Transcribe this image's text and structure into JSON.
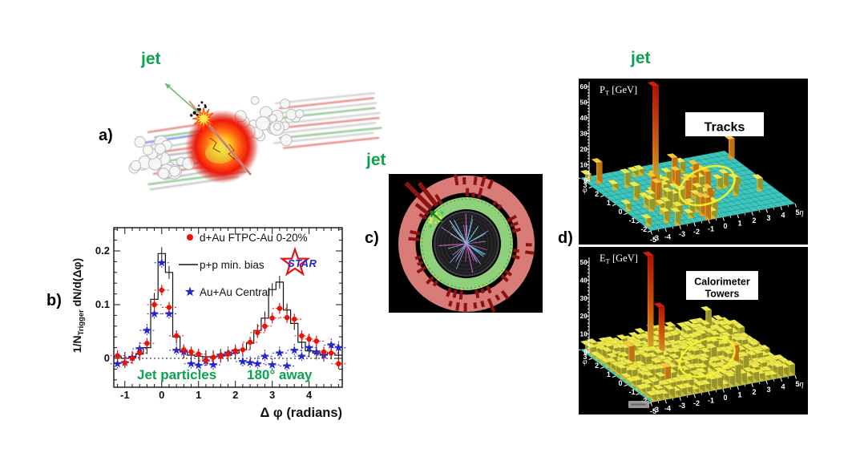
{
  "figure": {
    "jet_color": "#0ca24e",
    "panel_labels": {
      "a": "a)",
      "b": "b)",
      "c": "c)",
      "d": "d)"
    },
    "jet_labels": {
      "a": "jet",
      "c": "jet",
      "d": "jet"
    }
  },
  "chart_data": [
    {
      "panel": "b",
      "type": "scatter",
      "subtype": "dihadron-azimuthal-correlation",
      "xlabel": "Δ φ (radians)",
      "ylabel": {
        "text": "1/N_Trigger dN/d(Δφ)",
        "prefix": "1/N",
        "sub": "Trigger",
        "suffix": " dN/d(Δφ)"
      },
      "xlim": [
        -1.3,
        4.9
      ],
      "ylim": [
        -0.054,
        0.243
      ],
      "xticks": [
        -1,
        0,
        1,
        2,
        3,
        4
      ],
      "yticks": [
        0,
        0.1,
        0.2
      ],
      "zero_line": true,
      "annotation_left": "Jet particles",
      "annotation_right": "180° away",
      "logo": "STAR",
      "x": [
        -1.2,
        -1.0,
        -0.8,
        -0.6,
        -0.4,
        -0.2,
        0.0,
        0.2,
        0.4,
        0.6,
        0.8,
        1.0,
        1.2,
        1.4,
        1.6,
        1.8,
        2.0,
        2.2,
        2.4,
        2.6,
        2.8,
        3.0,
        3.2,
        3.4,
        3.6,
        3.8,
        4.0,
        4.2,
        4.4,
        4.6,
        4.8
      ],
      "series": [
        {
          "name": "d+Au FTPC-Au 0-20%",
          "marker": "circle",
          "color": "#ea1208",
          "yerr": 0.01,
          "values": [
            0.005,
            -0.008,
            0.0,
            0.01,
            0.028,
            0.1,
            0.127,
            0.095,
            0.042,
            0.016,
            0.012,
            0.008,
            -0.003,
            0.002,
            0.004,
            0.008,
            0.014,
            0.016,
            0.03,
            0.048,
            0.06,
            0.075,
            0.093,
            0.076,
            0.073,
            0.042,
            0.036,
            0.032,
            0.012,
            0.01,
            -0.01
          ]
        },
        {
          "name": "p+p min. bias",
          "marker": "histogram",
          "color": "#111111",
          "yerr": 0.012,
          "values": [
            0.003,
            0.0,
            0.002,
            0.008,
            0.02,
            0.11,
            0.195,
            0.16,
            0.04,
            0.012,
            0.006,
            0.004,
            0.003,
            0.003,
            0.004,
            0.006,
            0.01,
            0.016,
            0.028,
            0.052,
            0.075,
            0.128,
            0.142,
            0.09,
            0.065,
            0.03,
            0.014,
            0.01,
            0.006,
            0.01,
            0.006
          ]
        },
        {
          "name": "Au+Au Central",
          "marker": "star",
          "color": "#2424cc",
          "yerr": 0.012,
          "values": [
            -0.01,
            -0.008,
            0.002,
            0.018,
            0.052,
            0.083,
            0.178,
            0.083,
            0.015,
            0.012,
            -0.01,
            -0.013,
            -0.005,
            -0.012,
            0.006,
            0.01,
            0.014,
            -0.006,
            -0.008,
            -0.01,
            0.004,
            -0.012,
            0.01,
            -0.014,
            0.015,
            0.004,
            0.02,
            0.012,
            0.006,
            0.025,
            0.02
          ]
        }
      ]
    },
    {
      "panel": "d-top",
      "type": "heatmap",
      "style": "3d-lego",
      "title": "Tracks",
      "title_lines": [
        "Tracks"
      ],
      "zlabel": {
        "text": "P_T [GeV]",
        "prefix": "P",
        "sub": "T",
        "suffix": " [GeV]"
      },
      "zticks": [
        0,
        10,
        20,
        30,
        40,
        50,
        60
      ],
      "xlabel": "η",
      "eta_ticks": [
        -5,
        -4,
        -3,
        -2,
        -1,
        0,
        1,
        2,
        3,
        4,
        5
      ],
      "ylabel": "φ",
      "phi_ticks": [
        3,
        2,
        1,
        0,
        -1,
        -2,
        -3
      ],
      "jet_towers": [
        {
          "eta": -2.0,
          "phi": 0.8,
          "gev": 68
        }
      ],
      "away_side_ellipse": {
        "eta": 1.1,
        "phi": -0.3
      },
      "plane_color": "#3ec6bc",
      "background": "#000000"
    },
    {
      "panel": "d-bottom",
      "type": "heatmap",
      "style": "3d-lego",
      "title": "Calorimeter Towers",
      "title_lines": [
        "Calorimeter",
        "Towers"
      ],
      "zlabel": {
        "text": "E_T [GeV]",
        "prefix": "E",
        "sub": "T",
        "suffix": " [GeV]"
      },
      "zticks": [
        0,
        10,
        20,
        30,
        40,
        50
      ],
      "xlabel": "η",
      "eta_ticks": [
        -5,
        -4,
        -3,
        -2,
        -1,
        0,
        1,
        2,
        3,
        4,
        5
      ],
      "ylabel": "φ",
      "phi_ticks": [
        3,
        2,
        1,
        0,
        -1,
        -2,
        -3
      ],
      "jet_towers": [
        {
          "eta": -1.9,
          "phi": 1.0,
          "gev": 58
        },
        {
          "eta": -1.6,
          "phi": 0.5,
          "gev": 31
        }
      ],
      "away_side_ellipse": {
        "eta": 1.1,
        "phi": -0.3
      },
      "plane_color": "#3ec6bc",
      "background": "#000000"
    }
  ],
  "panel_c": {
    "jet_label": "jet",
    "colors": {
      "background": "#000000",
      "outer_calorimeter_ring": "#d97c78",
      "emc_ring": "#8fd07c",
      "tpc_disc": "#1d1d20",
      "towers": "#8d1212",
      "hit_dots": "#f0e030"
    }
  }
}
